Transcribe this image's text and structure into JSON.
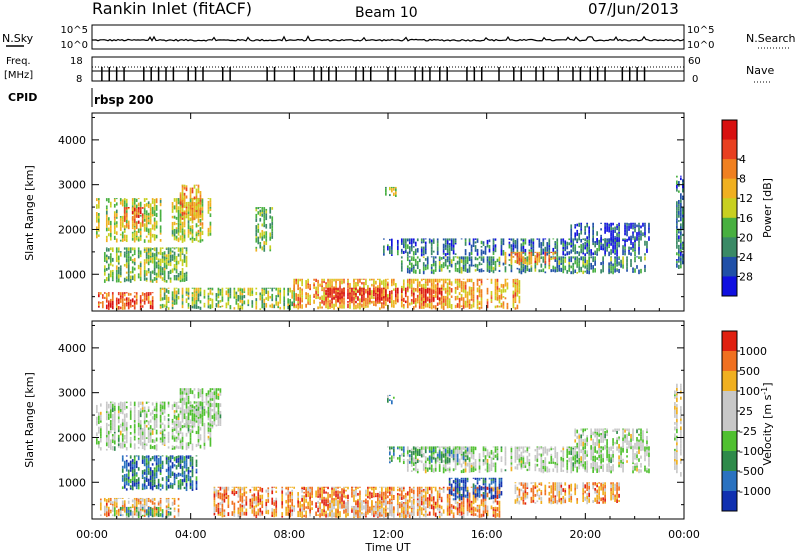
{
  "header": {
    "station": "Rankin Inlet (fitACF)",
    "beam": "Beam 10",
    "date": "07/Jun/2013"
  },
  "strips": {
    "nsky_label": "N.Sky",
    "nsearch_label": "N.Search",
    "nsky_ticks": [
      "10^5",
      "10^0"
    ],
    "nsearch_ticks": [
      "10^5",
      "10^0"
    ],
    "freq_label": "Freq.",
    "freq_unit": "[MHz]",
    "freq_ticks": [
      "18",
      "8"
    ],
    "nave_label": "Nave",
    "nave_ticks": [
      "60",
      "0"
    ],
    "cpid_label": "CPID",
    "cpid_value": "rbsp 200"
  },
  "x_axis": {
    "title": "Time UT",
    "ticks": [
      "00:00",
      "04:00",
      "08:00",
      "12:00",
      "16:00",
      "20:00",
      "00:00"
    ]
  },
  "panels": {
    "power": {
      "ylabel": "Slant Range [km]",
      "yticks": [
        "1000",
        "2000",
        "3000",
        "4000"
      ],
      "colorbar_label": "Power [dB]",
      "colorbar_ticks": [
        "4",
        "8",
        "12",
        "16",
        "20",
        "24",
        "28"
      ],
      "colors": [
        "#1010e0",
        "#2050a8",
        "#3a8a66",
        "#48b040",
        "#c8d020",
        "#f0b020",
        "#f08020",
        "#e84020",
        "#d81010"
      ]
    },
    "velocity": {
      "ylabel": "Slant Range [km]",
      "yticks": [
        "1000",
        "2000",
        "3000",
        "4000"
      ],
      "colorbar_label": "Velocity [m s",
      "colorbar_sup": "-1",
      "colorbar_label_end": "]",
      "colorbar_ticks": [
        "1000",
        "500",
        "100",
        "25",
        "-25",
        "-100",
        "-500",
        "-1000"
      ],
      "colors": [
        "#1030b0",
        "#2a72c0",
        "#2e8a4a",
        "#50c030",
        "#c8c8c8",
        "#c8c8c8",
        "#f0b020",
        "#f07020",
        "#e02010"
      ]
    }
  },
  "chart_data": [
    {
      "type": "heatmap",
      "title": "Power",
      "xlabel": "Time UT",
      "ylabel": "Slant Range [km]",
      "xlim": [
        0,
        24
      ],
      "ylim": [
        180,
        4600
      ],
      "legend": "colorbar right",
      "colorbar": "Power [dB]",
      "blobs": [
        {
          "t0": 0.2,
          "t1": 4.8,
          "r0": 1700,
          "r1": 2700,
          "level": 0.5
        },
        {
          "t0": 1.3,
          "t1": 2.2,
          "r0": 2000,
          "r1": 2500,
          "level": 0.75
        },
        {
          "t0": 3.6,
          "t1": 4.4,
          "r0": 2200,
          "r1": 3000,
          "level": 0.65
        },
        {
          "t0": 0.5,
          "t1": 3.8,
          "r0": 800,
          "r1": 1600,
          "level": 0.4
        },
        {
          "t0": 0.3,
          "t1": 2.6,
          "r0": 200,
          "r1": 600,
          "level": 0.82
        },
        {
          "t0": 2.8,
          "t1": 8.2,
          "r0": 200,
          "r1": 700,
          "level": 0.45
        },
        {
          "t0": 8.2,
          "t1": 17.3,
          "r0": 200,
          "r1": 900,
          "level": 0.65
        },
        {
          "t0": 9.5,
          "t1": 14.3,
          "r0": 350,
          "r1": 700,
          "level": 0.92
        },
        {
          "t0": 11.8,
          "t1": 22.6,
          "r0": 1400,
          "r1": 1800,
          "level": 0.2
        },
        {
          "t0": 12.6,
          "t1": 22.4,
          "r0": 1000,
          "r1": 1400,
          "level": 0.3
        },
        {
          "t0": 16.8,
          "t1": 18.8,
          "r0": 1200,
          "r1": 1500,
          "level": 0.72
        },
        {
          "t0": 19.4,
          "t1": 22.6,
          "r0": 1700,
          "r1": 2150,
          "level": 0.12
        },
        {
          "t0": 6.7,
          "t1": 7.3,
          "r0": 1500,
          "r1": 2500,
          "level": 0.4
        },
        {
          "t0": 11.9,
          "t1": 12.3,
          "r0": 2700,
          "r1": 2950,
          "level": 0.5
        },
        {
          "t0": 23.6,
          "t1": 23.95,
          "r0": 1100,
          "r1": 3200,
          "level": 0.25
        }
      ]
    },
    {
      "type": "heatmap",
      "title": "Velocity",
      "xlabel": "Time UT",
      "ylabel": "Slant Range [km]",
      "xlim": [
        0,
        24
      ],
      "ylim": [
        180,
        4600
      ],
      "legend": "colorbar right",
      "colorbar": "Velocity [m s-1]",
      "blobs": [
        {
          "t0": 0.2,
          "t1": 4.8,
          "r0": 1700,
          "r1": 2800,
          "level": 0.5
        },
        {
          "t0": 3.6,
          "t1": 5.3,
          "r0": 2200,
          "r1": 3100,
          "level": 0.5
        },
        {
          "t0": 1.2,
          "t1": 4.4,
          "r0": 800,
          "r1": 1600,
          "level": 0.2
        },
        {
          "t0": 0.3,
          "t1": 3.5,
          "r0": 200,
          "r1": 650,
          "level": 0.72
        },
        {
          "t0": 5.0,
          "t1": 16.5,
          "r0": 200,
          "r1": 900,
          "level": 0.78
        },
        {
          "t0": 9.5,
          "t1": 13.5,
          "r0": 200,
          "r1": 600,
          "level": 0.68
        },
        {
          "t0": 12.8,
          "t1": 22.6,
          "r0": 1200,
          "r1": 1800,
          "level": 0.5
        },
        {
          "t0": 12.0,
          "t1": 15.2,
          "r0": 1400,
          "r1": 1800,
          "level": 0.35
        },
        {
          "t0": 14.5,
          "t1": 16.6,
          "r0": 600,
          "r1": 1100,
          "level": 0.1
        },
        {
          "t0": 17.2,
          "t1": 21.4,
          "r0": 500,
          "r1": 1000,
          "level": 0.76
        },
        {
          "t0": 19.6,
          "t1": 22.6,
          "r0": 1700,
          "r1": 2200,
          "level": 0.5
        },
        {
          "t0": 0.9,
          "t1": 3.2,
          "r0": 200,
          "r1": 450,
          "level": 0.3
        },
        {
          "t0": 11.9,
          "t1": 12.3,
          "r0": 2700,
          "r1": 2950,
          "level": 0.3
        },
        {
          "t0": 23.6,
          "t1": 23.95,
          "r0": 1100,
          "r1": 3200,
          "level": 0.6
        }
      ]
    }
  ]
}
